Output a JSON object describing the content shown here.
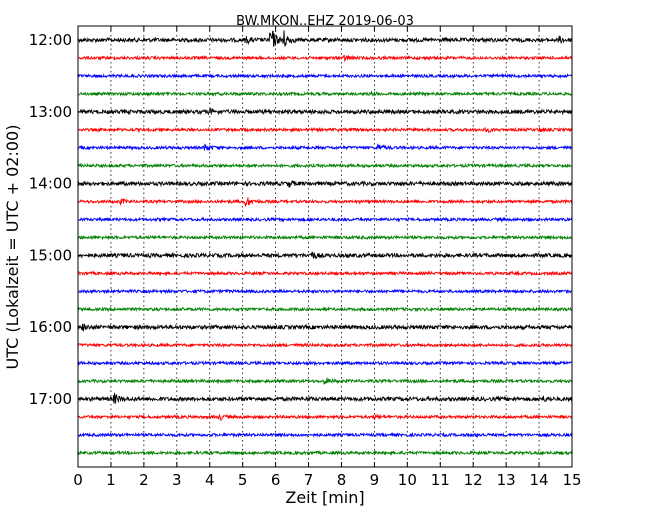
{
  "chart_data": {
    "type": "line",
    "title": "BW.MKON..EHZ 2019-06-03",
    "xlabel": "Zeit  [min]",
    "ylabel": "UTC (Lokalzeit = UTC + 02:00)",
    "xlim": [
      0,
      15
    ],
    "x_ticks": [
      "0",
      "1",
      "2",
      "3",
      "4",
      "5",
      "6",
      "7",
      "8",
      "9",
      "10",
      "11",
      "12",
      "13",
      "14",
      "15"
    ],
    "y_ticks": [
      "12:00",
      "13:00",
      "14:00",
      "15:00",
      "16:00",
      "17:00"
    ],
    "grid": "vertical dotted at each minute",
    "colors": [
      "#000000",
      "#ff0000",
      "#0000ff",
      "#008000"
    ],
    "traces": [
      {
        "start": "12:00",
        "color": "#000000",
        "events": [
          {
            "t": 5.85,
            "amp": 1.0
          },
          {
            "t": 6.2,
            "amp": 0.9
          },
          {
            "t": 5.1,
            "amp": 0.2
          },
          {
            "t": 14.6,
            "amp": 0.2
          }
        ]
      },
      {
        "start": "12:15",
        "color": "#ff0000",
        "events": [
          {
            "t": 8.1,
            "amp": 0.2
          }
        ]
      },
      {
        "start": "12:30",
        "color": "#0000ff",
        "events": []
      },
      {
        "start": "12:45",
        "color": "#008000",
        "events": [
          {
            "t": 8.9,
            "amp": 0.12
          }
        ]
      },
      {
        "start": "13:00",
        "color": "#000000",
        "events": [
          {
            "t": 4.0,
            "amp": 0.15
          }
        ]
      },
      {
        "start": "13:15",
        "color": "#ff0000",
        "events": [
          {
            "t": 12.4,
            "amp": 0.15
          },
          {
            "t": 14.0,
            "amp": 0.15
          }
        ]
      },
      {
        "start": "13:30",
        "color": "#0000ff",
        "events": [
          {
            "t": 3.85,
            "amp": 0.3
          },
          {
            "t": 9.1,
            "amp": 0.25
          }
        ]
      },
      {
        "start": "13:45",
        "color": "#008000",
        "events": []
      },
      {
        "start": "14:00",
        "color": "#000000",
        "events": [
          {
            "t": 6.4,
            "amp": 0.2
          }
        ]
      },
      {
        "start": "14:15",
        "color": "#ff0000",
        "events": [
          {
            "t": 5.1,
            "amp": 0.4
          },
          {
            "t": 1.3,
            "amp": 0.15
          }
        ]
      },
      {
        "start": "14:30",
        "color": "#0000ff",
        "events": []
      },
      {
        "start": "14:45",
        "color": "#008000",
        "events": []
      },
      {
        "start": "15:00",
        "color": "#000000",
        "events": [
          {
            "t": 7.1,
            "amp": 0.25
          }
        ]
      },
      {
        "start": "15:15",
        "color": "#ff0000",
        "events": []
      },
      {
        "start": "15:30",
        "color": "#0000ff",
        "events": []
      },
      {
        "start": "15:45",
        "color": "#008000",
        "events": []
      },
      {
        "start": "16:00",
        "color": "#000000",
        "events": [
          {
            "t": 0.15,
            "amp": 0.2
          }
        ]
      },
      {
        "start": "16:15",
        "color": "#ff0000",
        "events": []
      },
      {
        "start": "16:30",
        "color": "#0000ff",
        "events": []
      },
      {
        "start": "16:45",
        "color": "#008000",
        "events": [
          {
            "t": 7.5,
            "amp": 0.25
          }
        ]
      },
      {
        "start": "17:00",
        "color": "#000000",
        "events": [
          {
            "t": 1.1,
            "amp": 0.35
          },
          {
            "t": 14.1,
            "amp": 0.15
          }
        ]
      },
      {
        "start": "17:15",
        "color": "#ff0000",
        "events": [
          {
            "t": 4.3,
            "amp": 0.2
          },
          {
            "t": 9.0,
            "amp": 0.15
          }
        ]
      },
      {
        "start": "17:30",
        "color": "#0000ff",
        "events": [
          {
            "t": 12.1,
            "amp": 0.12
          }
        ]
      },
      {
        "start": "17:45",
        "color": "#008000",
        "events": []
      }
    ]
  }
}
